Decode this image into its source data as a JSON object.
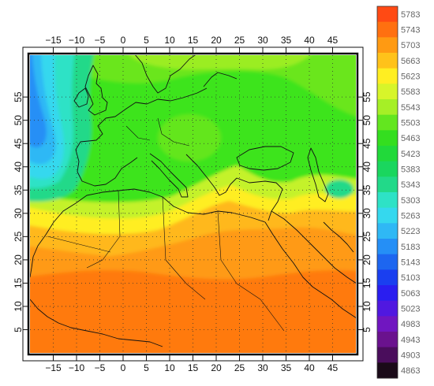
{
  "map": {
    "lon_ticks": [
      "-15",
      "-10",
      "-5",
      "0",
      "5",
      "10",
      "15",
      "20",
      "25",
      "30",
      "35",
      "40",
      "45"
    ],
    "lat_ticks": [
      "5",
      "10",
      "15",
      "20",
      "25",
      "30",
      "35",
      "40",
      "45",
      "50",
      "55"
    ],
    "lon_range": [
      -20,
      50
    ],
    "lat_range": [
      0,
      64
    ],
    "grid": "dotted",
    "colors": {
      "ocean_deep_blue": "#1f6bd6",
      "cyan": "#35d3ee",
      "green": "#2ee82e",
      "yellow_green": "#b6f03a",
      "yellow": "#ffff3a",
      "orange": "#ffa51d",
      "dark_orange": "#ff7a10",
      "coastline": "#111111"
    }
  },
  "colorbar": {
    "levels": [
      {
        "label": "5783",
        "color": "#ff4a14"
      },
      {
        "label": "5743",
        "color": "#ff7010"
      },
      {
        "label": "5703",
        "color": "#ff9a12"
      },
      {
        "label": "5663",
        "color": "#ffc21a"
      },
      {
        "label": "5623",
        "color": "#ffee22"
      },
      {
        "label": "5583",
        "color": "#d7f52a"
      },
      {
        "label": "5543",
        "color": "#a6ef26"
      },
      {
        "label": "5503",
        "color": "#63e61f"
      },
      {
        "label": "5463",
        "color": "#34de1f"
      },
      {
        "label": "5423",
        "color": "#21d93a"
      },
      {
        "label": "5383",
        "color": "#1ad65e"
      },
      {
        "label": "5343",
        "color": "#22d989"
      },
      {
        "label": "5303",
        "color": "#2ee2c6"
      },
      {
        "label": "5263",
        "color": "#35d8ee"
      },
      {
        "label": "5223",
        "color": "#2fb8f5"
      },
      {
        "label": "5183",
        "color": "#258ff6"
      },
      {
        "label": "5143",
        "color": "#1d66f0"
      },
      {
        "label": "5103",
        "color": "#1a3ff0"
      },
      {
        "label": "5063",
        "color": "#2a1ef0"
      },
      {
        "label": "5023",
        "color": "#5018e0"
      },
      {
        "label": "4983",
        "color": "#7016c0"
      },
      {
        "label": "4943",
        "color": "#6a128e"
      },
      {
        "label": "4903",
        "color": "#4a0d5c"
      },
      {
        "label": "4863",
        "color": "#1a0a18"
      }
    ]
  }
}
